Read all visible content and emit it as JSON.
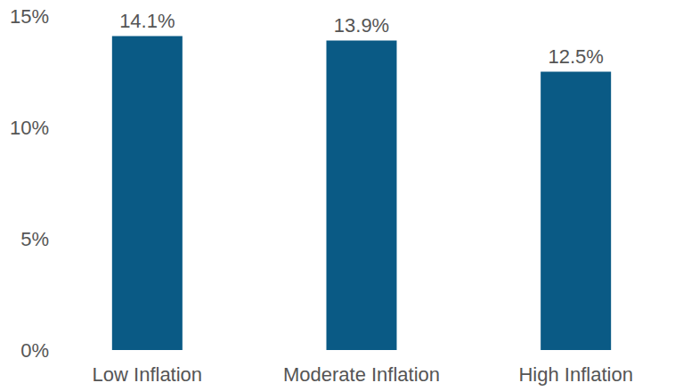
{
  "chart_data": {
    "type": "bar",
    "categories": [
      "Low Inflation",
      "Moderate Inflation",
      "High Inflation"
    ],
    "values": [
      14.1,
      13.9,
      12.5
    ],
    "value_labels": [
      "14.1%",
      "13.9%",
      "12.5%"
    ],
    "color": "#0a5a85",
    "ylim": [
      0,
      15
    ],
    "yticks": [
      {
        "value": 0,
        "label": "0%"
      },
      {
        "value": 5,
        "label": "5%"
      },
      {
        "value": 10,
        "label": "10%"
      },
      {
        "value": 15,
        "label": "15%"
      }
    ],
    "grid": false,
    "data_labels": true
  }
}
